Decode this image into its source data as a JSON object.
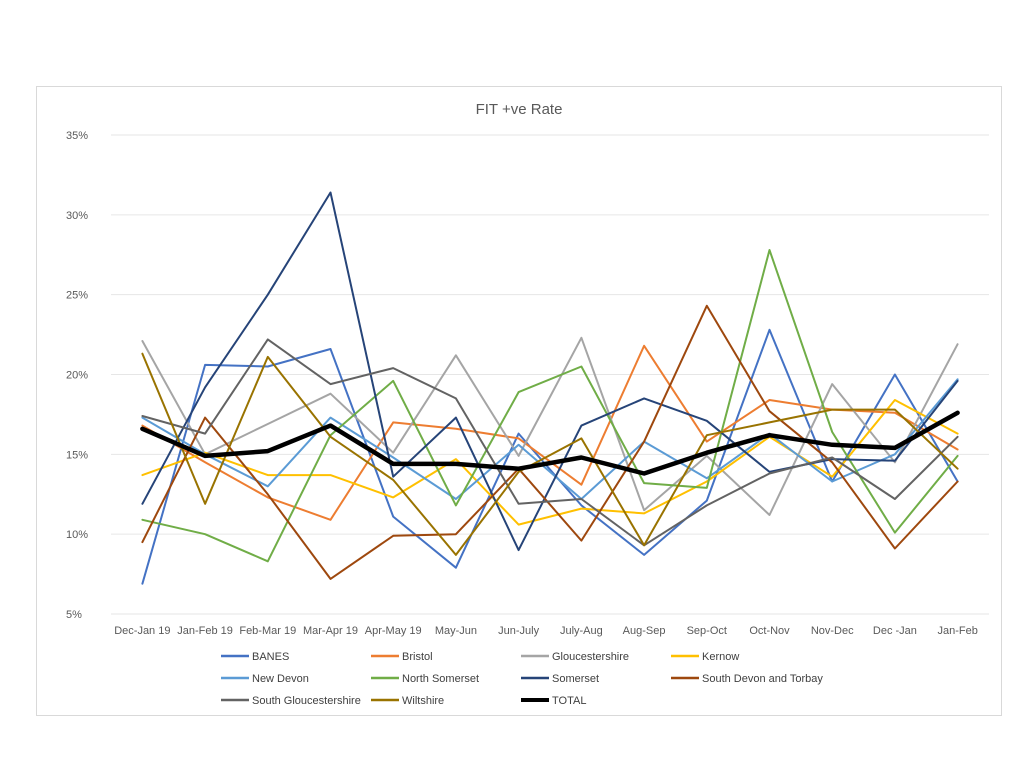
{
  "chart_data": {
    "type": "line",
    "title": "FIT +ve Rate",
    "xlabel": "",
    "ylabel": "",
    "ylim": [
      5,
      35
    ],
    "ytick_labels": [
      "5%",
      "10%",
      "15%",
      "20%",
      "25%",
      "30%",
      "35%"
    ],
    "y_unit": "%",
    "grid": true,
    "legend_position": "bottom",
    "categories": [
      "Dec-Jan 19",
      "Jan-Feb 19",
      "Feb-Mar 19",
      "Mar-Apr 19",
      "Apr-May 19",
      "May-Jun",
      "Jun-July",
      "July-Aug",
      "Aug-Sep",
      "Sep-Oct",
      "Oct-Nov",
      "Nov-Dec",
      "Dec -Jan",
      "Jan-Feb"
    ],
    "series": [
      {
        "name": "BANES",
        "color": "#4472c4",
        "width": 2,
        "values": [
          6.9,
          20.6,
          20.5,
          21.6,
          11.1,
          7.9,
          16.3,
          11.8,
          8.7,
          12.1,
          22.8,
          13.3,
          20.0,
          13.3
        ]
      },
      {
        "name": "Bristol",
        "color": "#ed7d31",
        "width": 2,
        "values": [
          16.8,
          14.5,
          12.3,
          10.9,
          17.0,
          16.6,
          16.0,
          13.1,
          21.8,
          15.8,
          18.4,
          17.8,
          17.6,
          15.3
        ]
      },
      {
        "name": "Gloucestershire",
        "color": "#a5a5a5",
        "width": 2,
        "values": [
          22.1,
          15.0,
          16.9,
          18.8,
          15.1,
          21.2,
          14.9,
          22.3,
          11.5,
          14.9,
          11.2,
          19.4,
          14.5,
          21.9
        ]
      },
      {
        "name": "Kernow",
        "color": "#ffc000",
        "width": 2,
        "values": [
          13.7,
          15.1,
          13.7,
          13.7,
          12.3,
          14.7,
          10.6,
          11.6,
          11.3,
          13.3,
          16.1,
          13.6,
          18.4,
          16.3
        ]
      },
      {
        "name": "New Devon",
        "color": "#5b9bd5",
        "width": 2,
        "values": [
          17.3,
          15.0,
          13.0,
          17.3,
          14.8,
          12.2,
          15.6,
          12.2,
          15.8,
          13.5,
          16.3,
          13.3,
          15.0,
          19.7
        ]
      },
      {
        "name": "North Somerset",
        "color": "#70ad47",
        "width": 2,
        "values": [
          10.9,
          10.0,
          8.3,
          16.2,
          19.6,
          11.8,
          18.9,
          20.5,
          13.2,
          12.9,
          27.8,
          16.4,
          10.1,
          14.9
        ]
      },
      {
        "name": "Somerset",
        "color": "#264478",
        "width": 2,
        "values": [
          11.9,
          19.2,
          25.0,
          31.4,
          13.6,
          17.3,
          9.0,
          16.8,
          18.5,
          17.1,
          13.9,
          14.7,
          14.6,
          19.6
        ]
      },
      {
        "name": "South Devon and Torbay",
        "color": "#9e480e",
        "width": 2,
        "values": [
          9.5,
          17.3,
          12.5,
          7.2,
          9.9,
          10.0,
          14.1,
          9.6,
          15.8,
          24.3,
          17.7,
          14.5,
          9.1,
          13.3
        ]
      },
      {
        "name": "South Gloucestershire",
        "color": "#636363",
        "width": 2,
        "values": [
          17.4,
          16.3,
          22.2,
          19.4,
          20.4,
          18.5,
          11.9,
          12.2,
          9.3,
          11.8,
          13.8,
          14.8,
          12.2,
          16.1
        ]
      },
      {
        "name": "Wiltshire",
        "color": "#997300",
        "width": 2,
        "values": [
          21.3,
          11.9,
          21.1,
          16.1,
          13.4,
          8.7,
          13.9,
          16.0,
          9.3,
          16.2,
          17.0,
          17.8,
          17.8,
          14.1
        ]
      },
      {
        "name": "TOTAL",
        "color": "#000000",
        "width": 4.5,
        "values": [
          16.6,
          14.9,
          15.2,
          16.8,
          14.4,
          14.4,
          14.1,
          14.8,
          13.8,
          15.1,
          16.2,
          15.6,
          15.4,
          17.6
        ]
      }
    ]
  }
}
